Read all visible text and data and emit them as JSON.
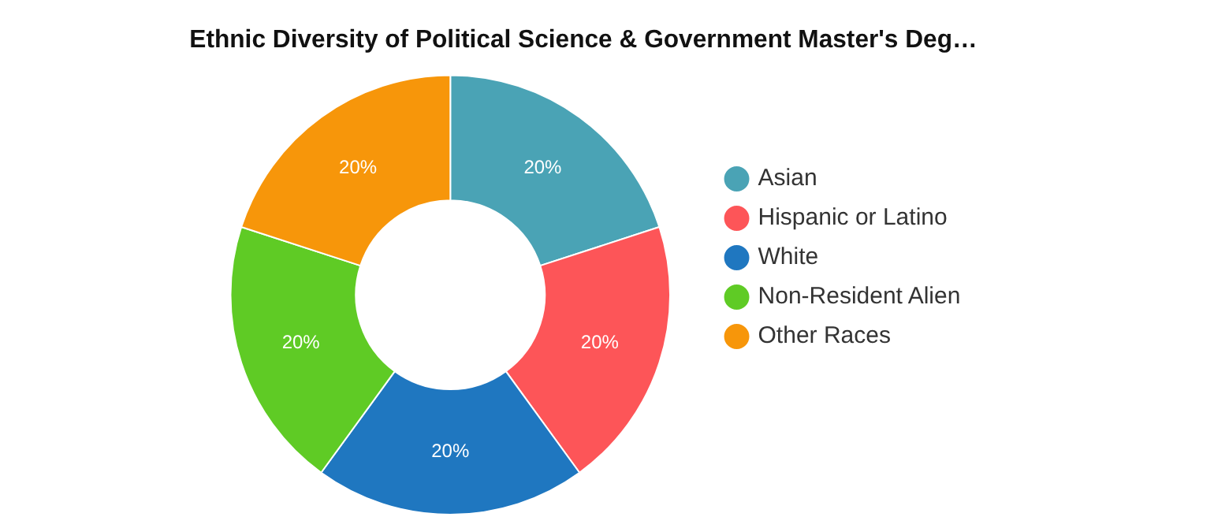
{
  "chart_data": {
    "type": "donut",
    "title": "Ethnic Diversity of Political Science & Government Master's Deg…",
    "categories": [
      "Asian",
      "Hispanic or Latino",
      "White",
      "Non-Resident Alien",
      "Other Races"
    ],
    "values": [
      20,
      20,
      20,
      20,
      20
    ],
    "colors": [
      "#4aa3b5",
      "#fd5558",
      "#1f77c0",
      "#5fcb25",
      "#f7960a"
    ],
    "value_labels": [
      "20%",
      "20%",
      "20%",
      "20%",
      "20%"
    ],
    "legend": "right"
  }
}
